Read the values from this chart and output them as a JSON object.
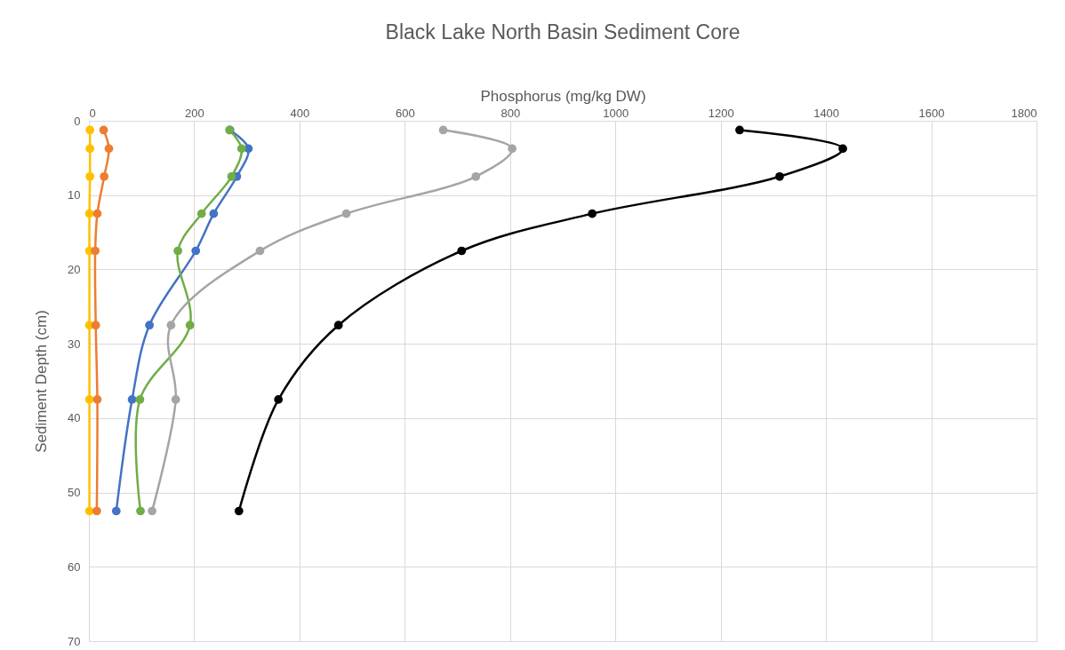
{
  "chart_data": {
    "type": "line",
    "title": "Black Lake North Basin Sediment Core",
    "xlabel": "Phosphorus (mg/kg DW)",
    "ylabel": "Sediment Depth (cm)",
    "xlim": [
      0,
      1800
    ],
    "xticks": [
      0,
      200,
      400,
      600,
      800,
      {
        "value": 1000,
        "label": "1000"
      },
      {
        "value": 1200,
        "label": "1200"
      },
      {
        "value": 1400,
        "label": "1400"
      },
      {
        "value": 1600,
        "label": "1600"
      },
      {
        "value": 1800,
        "label": "1800"
      }
    ],
    "ylim": [
      70,
      0
    ],
    "yticks": [
      0,
      10,
      20,
      30,
      40,
      50,
      60,
      70
    ],
    "grid": true,
    "legend": false,
    "marker": "circle",
    "line_style": "solid",
    "series": [
      {
        "color": "#ffc000",
        "x": [
          2,
          2,
          2,
          1,
          1,
          1,
          1,
          1
        ],
        "values": [
          1.25,
          3.75,
          7.5,
          12.5,
          17.5,
          27.5,
          37.5,
          52.5
        ]
      },
      {
        "color": "#ed7d31",
        "x": [
          28,
          38,
          29,
          16,
          12,
          13,
          16,
          15
        ],
        "values": [
          1.25,
          3.75,
          7.5,
          12.5,
          17.5,
          27.5,
          37.5,
          52.5
        ]
      },
      {
        "color": "#4472c4",
        "x": [
          268,
          303,
          281,
          237,
          203,
          115,
          82,
          52
        ],
        "values": [
          1.25,
          3.75,
          7.5,
          12.5,
          17.5,
          27.5,
          37.5,
          52.5
        ]
      },
      {
        "color": "#70ad47",
        "x": [
          267,
          290,
          271,
          214,
          169,
          192,
          97,
          98
        ],
        "values": [
          1.25,
          3.75,
          7.5,
          12.5,
          17.5,
          27.5,
          37.5,
          52.5
        ]
      },
      {
        "color": "#a5a5a5",
        "x": [
          673,
          804,
          735,
          489,
          325,
          156,
          165,
          120
        ],
        "values": [
          1.25,
          3.75,
          7.5,
          12.5,
          17.5,
          27.5,
          37.5,
          52.5
        ]
      },
      {
        "color": "#000000",
        "x": [
          1236,
          1432,
          1312,
          956,
          708,
          474,
          360,
          285
        ],
        "values": [
          1.25,
          3.75,
          7.5,
          12.5,
          17.5,
          27.5,
          37.5,
          52.5
        ]
      }
    ]
  }
}
